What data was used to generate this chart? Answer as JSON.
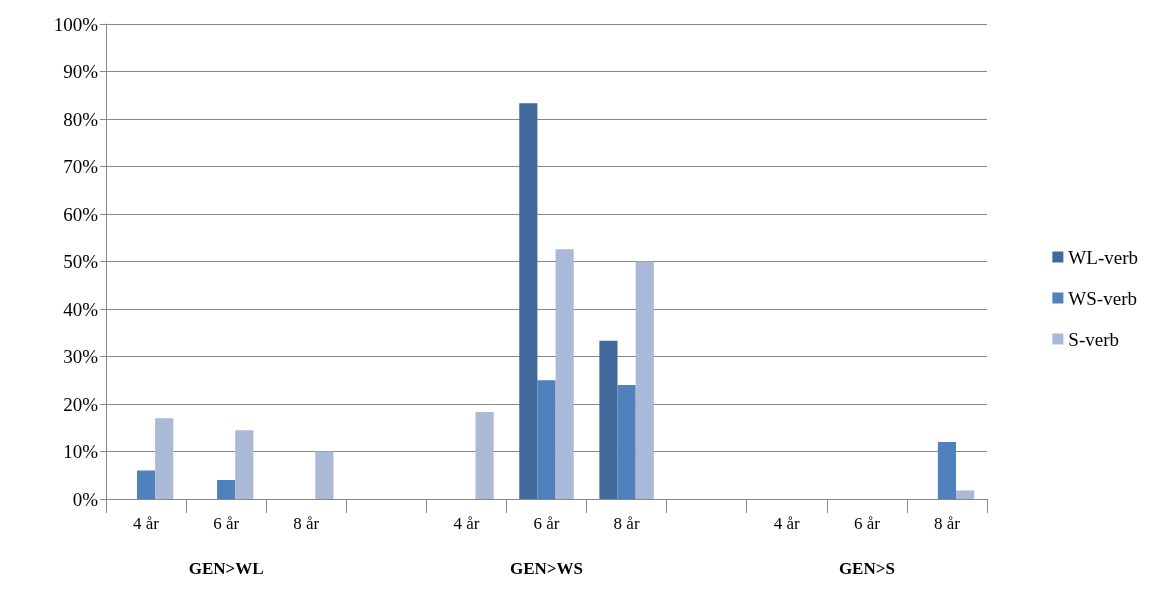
{
  "chart_data": {
    "type": "bar",
    "categories": [
      "4 år",
      "6 år",
      "8 år",
      null,
      "4 år",
      "6 år",
      "8 år",
      null,
      "4 år",
      "6 år",
      "8 år"
    ],
    "series": [
      {
        "name": "WL-verb",
        "color": "#41699b",
        "values": [
          0,
          0,
          0,
          0,
          0,
          83.3,
          33.3,
          0,
          0,
          0,
          0
        ]
      },
      {
        "name": "WS-verb",
        "color": "#4f81bd",
        "values": [
          6,
          4,
          0,
          0,
          0,
          25,
          24,
          0,
          0,
          0,
          12
        ]
      },
      {
        "name": "S-verb",
        "color": "#aab9d7",
        "values": [
          17,
          14.5,
          10,
          0,
          18.3,
          52.6,
          50,
          0,
          0,
          0,
          1.8
        ]
      }
    ],
    "ylim": [
      0,
      100
    ],
    "yticks": [
      {
        "value": 0,
        "label": "0%"
      },
      {
        "value": 10,
        "label": "10%"
      },
      {
        "value": 20,
        "label": "20%"
      },
      {
        "value": 30,
        "label": "30%"
      },
      {
        "value": 40,
        "label": "40%"
      },
      {
        "value": 50,
        "label": "50%"
      },
      {
        "value": 60,
        "label": "60%"
      },
      {
        "value": 70,
        "label": "70%"
      },
      {
        "value": 80,
        "label": "80%"
      },
      {
        "value": 90,
        "label": "90%"
      },
      {
        "value": 100,
        "label": "100%"
      }
    ],
    "grid": "y",
    "legend": "right",
    "annotations": [
      "GEN>WL",
      "GEN>WS",
      "GEN>S"
    ]
  }
}
